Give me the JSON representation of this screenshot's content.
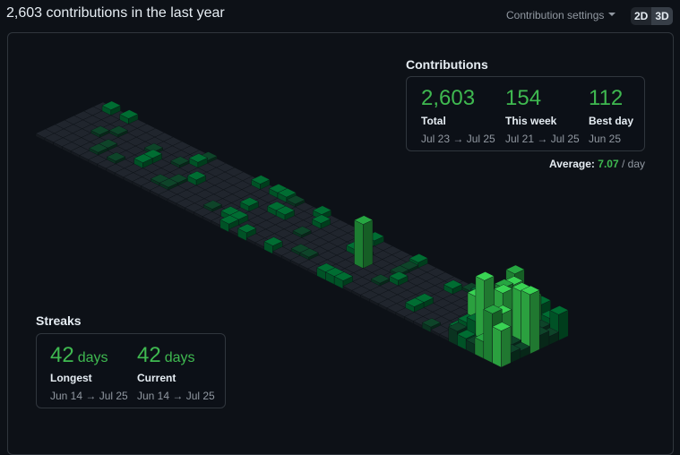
{
  "header": {
    "title": "2,603 contributions in the last year",
    "settings": "Contribution settings",
    "toggle": [
      "2D",
      "3D"
    ]
  },
  "contributions": {
    "title": "Contributions",
    "stats": [
      {
        "value": "2,603",
        "label": "Total",
        "range": "Jul 23 → Jul 25"
      },
      {
        "value": "154",
        "label": "This week",
        "range": "Jul 21 → Jul 25"
      },
      {
        "value": "112",
        "label": "Best day",
        "range": "Jun 25"
      }
    ],
    "average": {
      "label": "Average:",
      "value": "7.07",
      "unit": "/ day"
    }
  },
  "streaks": {
    "title": "Streaks",
    "stats": [
      {
        "value": "42",
        "unit": "days",
        "label": "Longest",
        "range": "Jun 14 → Jul 25"
      },
      {
        "value": "42",
        "unit": "days",
        "label": "Current",
        "range": "Jun 14 → Jul 25"
      }
    ]
  }
}
